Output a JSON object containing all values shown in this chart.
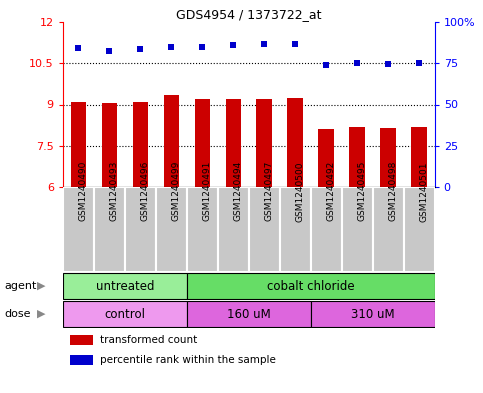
{
  "title": "GDS4954 / 1373722_at",
  "samples": [
    "GSM1240490",
    "GSM1240493",
    "GSM1240496",
    "GSM1240499",
    "GSM1240491",
    "GSM1240494",
    "GSM1240497",
    "GSM1240500",
    "GSM1240492",
    "GSM1240495",
    "GSM1240498",
    "GSM1240501"
  ],
  "bar_values": [
    9.1,
    9.05,
    9.1,
    9.35,
    9.2,
    9.2,
    9.2,
    9.25,
    8.1,
    8.2,
    8.15,
    8.2
  ],
  "dot_values": [
    11.05,
    10.95,
    11.0,
    11.1,
    11.1,
    11.15,
    11.2,
    11.2,
    10.45,
    10.5,
    10.48,
    10.5
  ],
  "bar_color": "#cc0000",
  "dot_color": "#0000cc",
  "ylim_left": [
    6,
    12
  ],
  "ylim_right": [
    0,
    100
  ],
  "yticks_left": [
    6,
    7.5,
    9,
    10.5,
    12
  ],
  "ytick_labels_left": [
    "6",
    "7.5",
    "9",
    "10.5",
    "12"
  ],
  "ytick_labels_right": [
    "0",
    "25",
    "50",
    "75",
    "100%"
  ],
  "hlines": [
    7.5,
    9.0,
    10.5
  ],
  "agent_groups": [
    {
      "label": "untreated",
      "start": 0,
      "end": 4,
      "color": "#99ee99"
    },
    {
      "label": "cobalt chloride",
      "start": 4,
      "end": 12,
      "color": "#66dd66"
    }
  ],
  "dose_groups": [
    {
      "label": "control",
      "start": 0,
      "end": 4,
      "color": "#ee99ee"
    },
    {
      "label": "160 uM",
      "start": 4,
      "end": 8,
      "color": "#dd66dd"
    },
    {
      "label": "310 uM",
      "start": 8,
      "end": 12,
      "color": "#dd66dd"
    }
  ],
  "legend_bar_label": "transformed count",
  "legend_dot_label": "percentile rank within the sample",
  "agent_label": "agent",
  "dose_label": "dose",
  "bar_width": 0.5,
  "sample_label_bg": "#c8c8c8",
  "border_color": "#888888"
}
